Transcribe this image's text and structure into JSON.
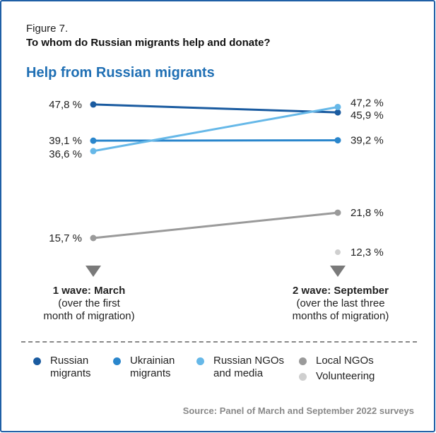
{
  "figure_label": "Figure 7.",
  "subtitle": "To whom do Russian migrants help and donate?",
  "source": "Source: Panel of March and September 2022 surveys",
  "waves": [
    {
      "title": "1 wave: March",
      "line1": "(over the first",
      "line2": "month of migration)"
    },
    {
      "title": "2 wave: September",
      "line1": "(over the last three",
      "line2": "months of migration)"
    }
  ],
  "legend": [
    {
      "line1": "Russian",
      "line2": "migrants"
    },
    {
      "line1": "Ukrainian",
      "line2": "migrants"
    },
    {
      "line1": "Russian NGOs",
      "line2": "and media"
    },
    {
      "line1": "Local NGOs",
      "line2": ""
    },
    {
      "line1": "Volunteering",
      "line2": ""
    }
  ],
  "chart_data": {
    "type": "line",
    "title": "Help from Russian migrants",
    "categories": [
      "1 wave: March",
      "2 wave: September"
    ],
    "series": [
      {
        "name": "Russian migrants",
        "values": [
          47.8,
          45.9
        ],
        "labels": [
          "47,8 %",
          "45,9 %"
        ],
        "color": "#1a5ba0"
      },
      {
        "name": "Ukrainian migrants",
        "values": [
          39.1,
          39.2
        ],
        "labels": [
          "39,1 %",
          "39,2 %"
        ],
        "color": "#2a86cc"
      },
      {
        "name": "Russian NGOs and media",
        "values": [
          36.6,
          47.2
        ],
        "labels": [
          "36,6 %",
          "47,2 %"
        ],
        "color": "#66b8e8"
      },
      {
        "name": "Local NGOs",
        "values": [
          15.7,
          21.8
        ],
        "labels": [
          "15,7 %",
          "21,8 %"
        ],
        "color": "#9a9a9a"
      },
      {
        "name": "Volunteering",
        "values": [
          null,
          12.3
        ],
        "labels": [
          "",
          "12,3 %"
        ],
        "color": "#cfcfcf"
      }
    ],
    "arrow_color": "#7a7a7a"
  }
}
